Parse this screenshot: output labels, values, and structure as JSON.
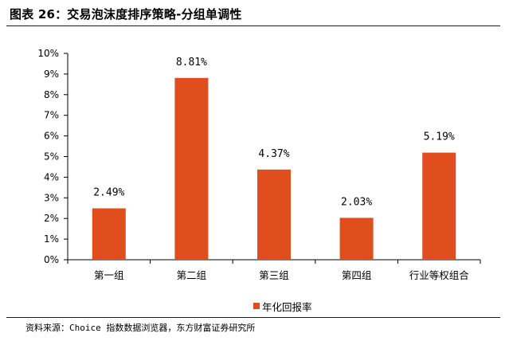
{
  "figure": {
    "title": "图表 26：交易泡沫度排序策略-分组单调性",
    "source": "资料来源：Choice 指数数据浏览器，东方财富证券研究所"
  },
  "colors": {
    "bar": "#E04E1E",
    "axis": "#000000"
  },
  "chart_data": {
    "type": "bar",
    "categories": [
      "第一组",
      "第二组",
      "第三组",
      "第四组",
      "行业等权组合"
    ],
    "series": [
      {
        "name": "年化回报率",
        "values": [
          2.49,
          8.81,
          4.37,
          2.03,
          5.19
        ]
      }
    ],
    "data_labels": [
      "2.49%",
      "8.81%",
      "4.37%",
      "2.03%",
      "5.19%"
    ],
    "y_ticks": [
      "0%",
      "1%",
      "2%",
      "3%",
      "4%",
      "5%",
      "6%",
      "7%",
      "8%",
      "9%",
      "10%"
    ],
    "ylim": [
      0,
      10
    ],
    "y_unit": "%",
    "grid": false,
    "legend": "bottom"
  }
}
